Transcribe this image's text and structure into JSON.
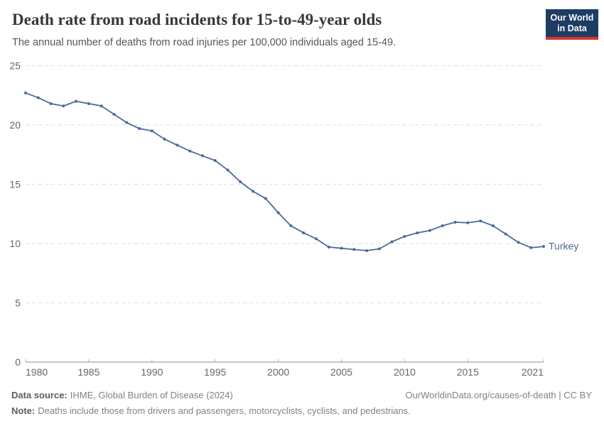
{
  "header": {
    "title": "Death rate from road incidents for 15-to-49-year olds",
    "subtitle": "The annual number of deaths from road injuries per 100,000 individuals aged 15-49.",
    "logo_line1": "Our World",
    "logo_line2": "in Data"
  },
  "chart_data": {
    "type": "line",
    "title": "Death rate from road incidents for 15-to-49-year olds",
    "xlabel": "",
    "ylabel": "",
    "xlim": [
      1980,
      2021
    ],
    "ylim": [
      0,
      25
    ],
    "x_ticks": [
      1980,
      1985,
      1990,
      1995,
      2000,
      2005,
      2010,
      2015,
      2021
    ],
    "y_ticks": [
      0,
      5,
      10,
      15,
      20,
      25
    ],
    "grid": "horizontal-dashed",
    "legend_position": "end-of-line",
    "series": [
      {
        "name": "Turkey",
        "color": "#4C6A9C",
        "x": [
          1980,
          1981,
          1982,
          1983,
          1984,
          1985,
          1986,
          1987,
          1988,
          1989,
          1990,
          1991,
          1992,
          1993,
          1994,
          1995,
          1996,
          1997,
          1998,
          1999,
          2000,
          2001,
          2002,
          2003,
          2004,
          2005,
          2006,
          2007,
          2008,
          2009,
          2010,
          2011,
          2012,
          2013,
          2014,
          2015,
          2016,
          2017,
          2018,
          2019,
          2020,
          2021
        ],
        "values": [
          22.7,
          22.3,
          21.8,
          21.6,
          22.0,
          21.8,
          21.6,
          20.9,
          20.2,
          19.7,
          19.5,
          18.8,
          18.3,
          17.8,
          17.4,
          17.0,
          16.2,
          15.2,
          14.4,
          13.8,
          12.6,
          11.5,
          10.9,
          10.4,
          9.7,
          9.6,
          9.5,
          9.4,
          9.55,
          10.15,
          10.6,
          10.9,
          11.1,
          11.5,
          11.8,
          11.75,
          11.9,
          11.5,
          10.8,
          10.1,
          9.65,
          9.75
        ]
      }
    ]
  },
  "colors": {
    "line": "#4C6A9C",
    "axis": "#8f8f8f",
    "tick": "#b2b2b2",
    "grid": "#dcdcdc",
    "tick_label": "#666666",
    "logo_bg": "#1d3d63",
    "logo_accent": "#d8352c"
  },
  "footer": {
    "source_label": "Data source:",
    "source_value": "IHME, Global Burden of Disease (2024)",
    "link": "OurWorldinData.org/causes-of-death | CC BY",
    "note_label": "Note:",
    "note_value": "Deaths include those from drivers and passengers, motorcyclists, cyclists, and pedestrians."
  }
}
